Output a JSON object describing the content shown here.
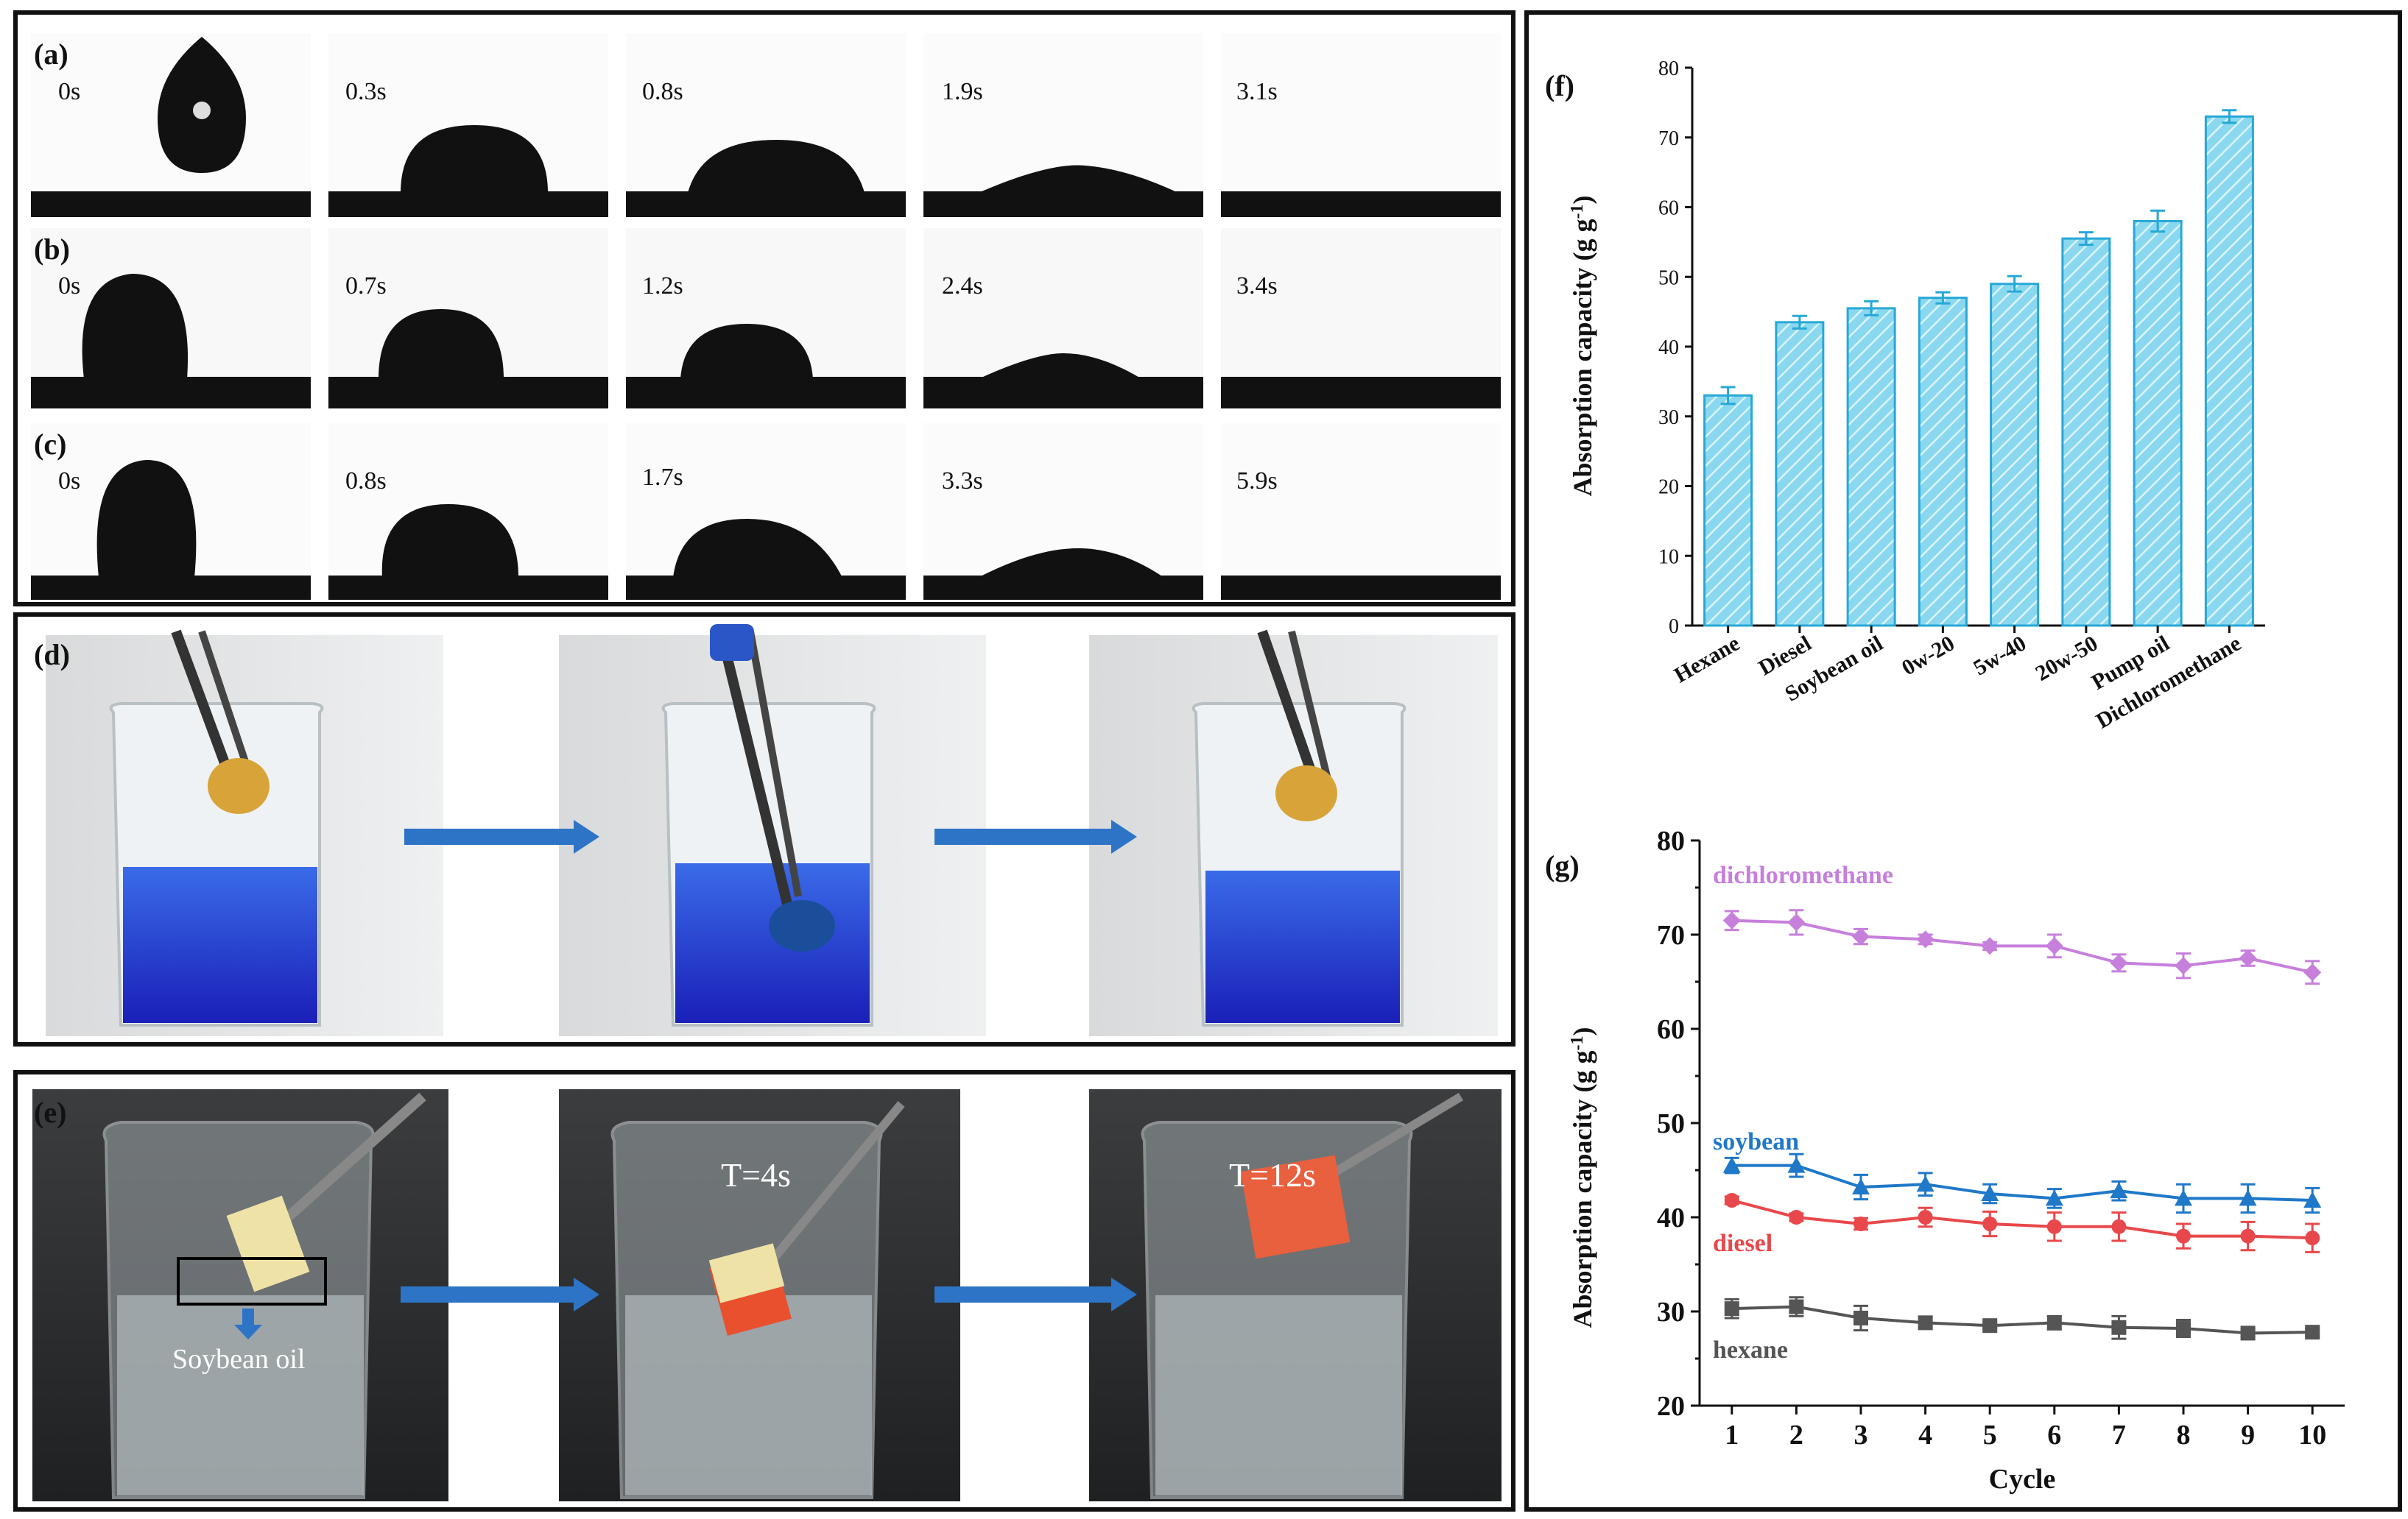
{
  "panels": {
    "a": {
      "label": "(a)",
      "times": [
        "0s",
        "0.3s",
        "0.8s",
        "1.9s",
        "3.1s"
      ]
    },
    "b": {
      "label": "(b)",
      "times": [
        "0s",
        "0.7s",
        "1.2s",
        "2.4s",
        "3.4s"
      ]
    },
    "c": {
      "label": "(c)",
      "times": [
        "0s",
        "0.8s",
        "1.7s",
        "3.3s",
        "5.9s"
      ]
    },
    "d": {
      "label": "(d)"
    },
    "e": {
      "label": "(e)",
      "annotation": "Soybean oil",
      "t1": "T=4s",
      "t2": "T=12s"
    }
  },
  "colors": {
    "bar_fill": "#8ad8ef",
    "bar_stroke": "#27a8d6",
    "dichloromethane": "#c77fdc",
    "soybean": "#1f78c8",
    "diesel": "#e8484b",
    "hexane": "#555555",
    "blue_liquid": "#2233c8"
  },
  "chart_data": [
    {
      "type": "bar",
      "label": "(f)",
      "categories": [
        "Hexane",
        "Diesel",
        "Soybean oil",
        "0w-20",
        "5w-40",
        "20w-50",
        "Pump oil",
        "Dichloromethane"
      ],
      "values": [
        33,
        43.5,
        45.5,
        47,
        49,
        55.5,
        58,
        73
      ],
      "errors": [
        1.2,
        0.9,
        1.0,
        0.8,
        1.1,
        0.9,
        1.5,
        0.9
      ],
      "ylabel": "Absorption capacity (g g-1)",
      "ylabel_main": "Absorption capacity (g g",
      "ylabel_sup": "-1",
      "ylabel_end": ")",
      "ylim": [
        0,
        80
      ],
      "yticks": [
        "0",
        "10",
        "20",
        "30",
        "40",
        "50",
        "60",
        "70",
        "80"
      ]
    },
    {
      "type": "line",
      "label": "(g)",
      "x": [
        1,
        2,
        3,
        4,
        5,
        6,
        7,
        8,
        9,
        10
      ],
      "xticks": [
        "1",
        "2",
        "3",
        "4",
        "5",
        "6",
        "7",
        "8",
        "9",
        "10"
      ],
      "xlabel": "Cycle",
      "ylabel_main": "Absorption capacity (g g",
      "ylabel_sup": "-1",
      "ylabel_end": ")",
      "ylim": [
        20,
        80
      ],
      "yticks": [
        "20",
        "30",
        "40",
        "50",
        "60",
        "70",
        "80"
      ],
      "series": [
        {
          "name": "dichloromethane",
          "marker": "diamond",
          "values": [
            71.5,
            71.3,
            69.8,
            69.5,
            68.8,
            68.8,
            67.0,
            66.7,
            67.5,
            66.0
          ],
          "errors": [
            1.0,
            1.3,
            0.8,
            0.5,
            0.4,
            1.2,
            0.9,
            1.3,
            0.8,
            1.2
          ]
        },
        {
          "name": "soybean",
          "marker": "triangle",
          "values": [
            45.5,
            45.5,
            43.2,
            43.5,
            42.5,
            42.0,
            42.8,
            42.0,
            42.0,
            41.8
          ],
          "errors": [
            0.8,
            1.2,
            1.3,
            1.2,
            1.0,
            1.0,
            1.0,
            1.5,
            1.5,
            1.3
          ]
        },
        {
          "name": "diesel",
          "marker": "circle",
          "values": [
            41.8,
            40.0,
            39.3,
            40.0,
            39.3,
            39.0,
            39.0,
            38.0,
            38.0,
            37.8
          ],
          "errors": [
            0.4,
            0.4,
            0.6,
            1.0,
            1.3,
            1.5,
            1.5,
            1.3,
            1.5,
            1.5
          ]
        },
        {
          "name": "hexane",
          "marker": "square",
          "values": [
            30.3,
            30.5,
            29.3,
            28.8,
            28.5,
            28.8,
            28.3,
            28.2,
            27.7,
            27.8
          ],
          "errors": [
            1.0,
            1.0,
            1.3,
            0.6,
            0.3,
            0.7,
            1.2,
            0.9,
            0.4,
            0.4
          ]
        }
      ]
    }
  ]
}
